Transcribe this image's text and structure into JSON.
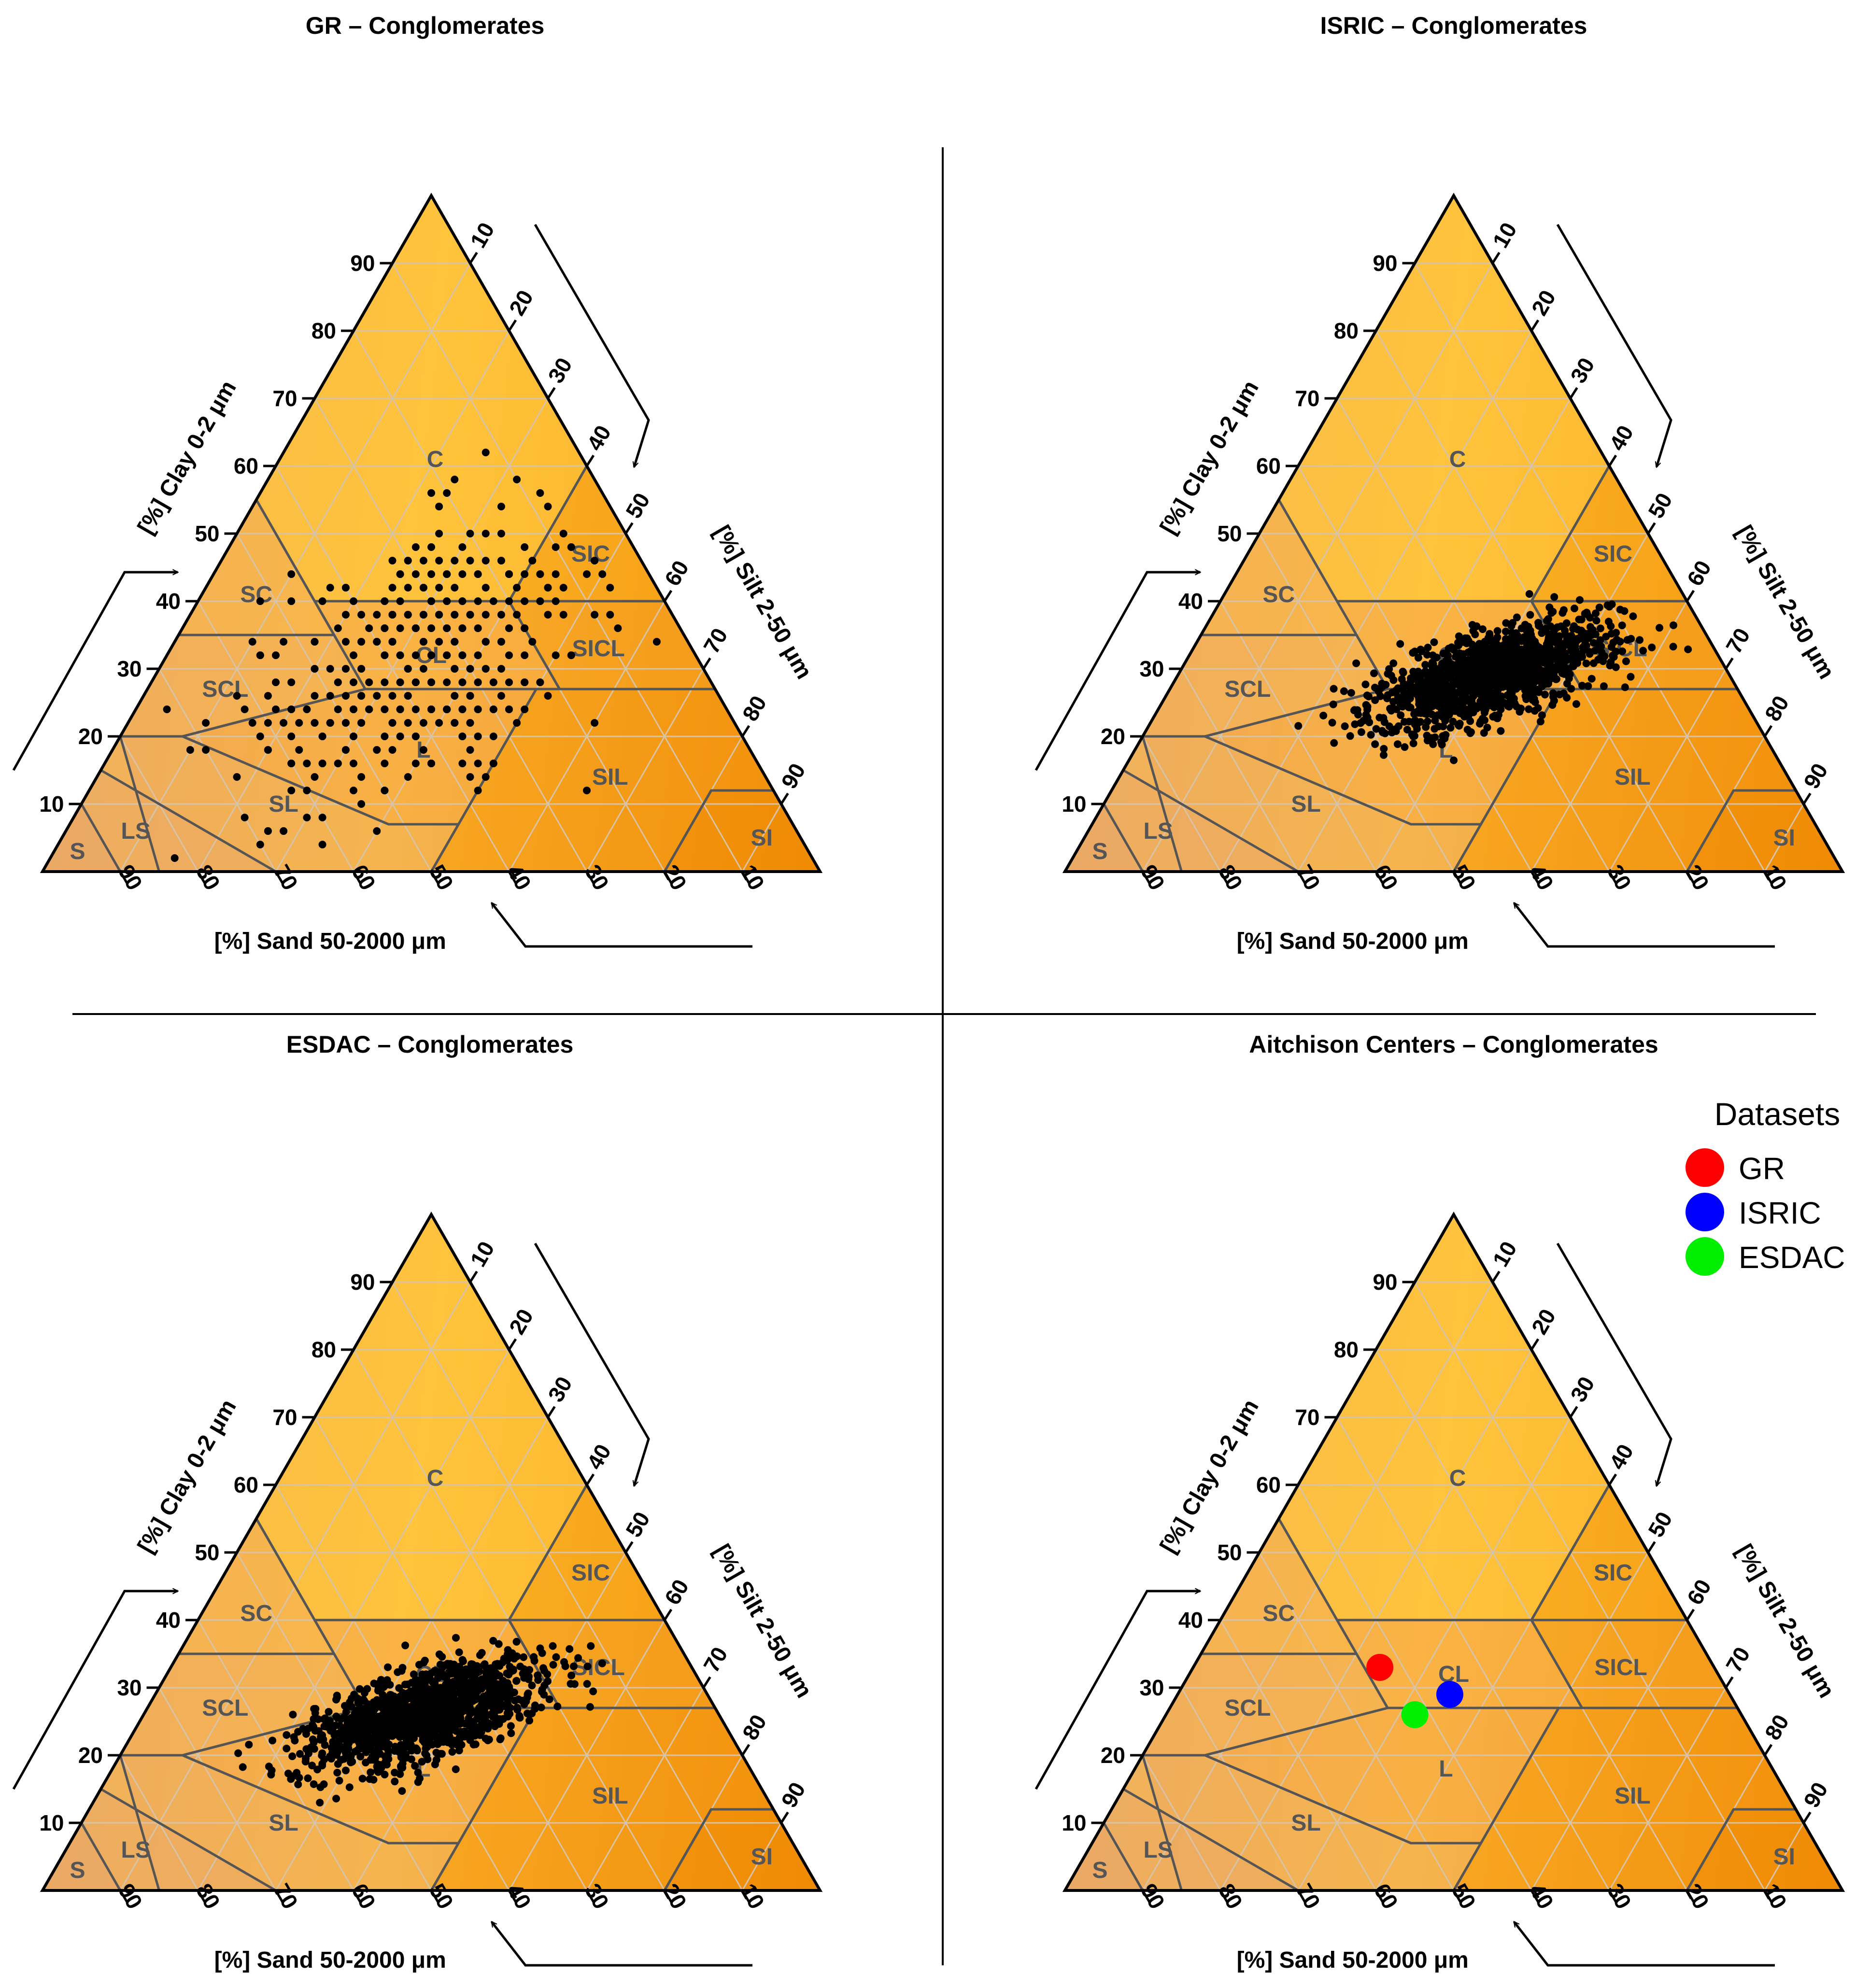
{
  "figure": {
    "colors": {
      "clay_light": "#FFC13A",
      "sand_light": "#EDAE62",
      "silt_dark": "#F08A00",
      "grid": "#D8C3A6",
      "boundary": "#555555",
      "point": "#000000",
      "divider": "#000000"
    }
  },
  "chart_data": [
    {
      "type": "ternary-scatter",
      "title": "GR – Conglomerates",
      "axes": {
        "clay": "[%] Clay 0-2 μm",
        "silt": "[%] Silt 2-50 μm",
        "sand": "[%] Sand 50-2000 μm"
      },
      "ticks": [
        "10",
        "20",
        "30",
        "40",
        "50",
        "60",
        "70",
        "80",
        "90"
      ],
      "classes": [
        "C",
        "SIC",
        "SC",
        "CL",
        "SICL",
        "SCL",
        "L",
        "SIL",
        "SL",
        "LS",
        "S",
        "SI"
      ],
      "points": {
        "seed": 11,
        "count": 420,
        "type": "grid",
        "center": {
          "clay": 31,
          "silt": 34
        },
        "spread": {
          "clay": 11,
          "silt": 10
        }
      }
    },
    {
      "type": "ternary-scatter",
      "title": "ISRIC – Conglomerates",
      "axes": {
        "clay": "[%] Clay 0-2 μm",
        "silt": "[%] Silt 2-50 μm",
        "sand": "[%] Sand 50-2000 μm"
      },
      "ticks": [
        "10",
        "20",
        "30",
        "40",
        "50",
        "60",
        "70",
        "80",
        "90"
      ],
      "classes": [
        "C",
        "SIC",
        "SC",
        "CL",
        "SICL",
        "SCL",
        "L",
        "SIL",
        "SL",
        "LS",
        "S",
        "SI"
      ],
      "points": {
        "seed": 23,
        "count": 1300,
        "type": "cloud",
        "center": {
          "clay": 29,
          "silt": 40
        },
        "spread": {
          "clay": 4,
          "silt": 6
        }
      }
    },
    {
      "type": "ternary-scatter",
      "title": "ESDAC – Conglomerates",
      "axes": {
        "clay": "[%] Clay 0-2 μm",
        "silt": "[%] Silt 2-50 μm",
        "sand": "[%] Sand 50-2000 μm"
      },
      "ticks": [
        "10",
        "20",
        "30",
        "40",
        "50",
        "60",
        "70",
        "80",
        "90"
      ],
      "classes": [
        "C",
        "SIC",
        "SC",
        "CL",
        "SICL",
        "SCL",
        "L",
        "SIL",
        "SL",
        "LS",
        "S",
        "SI"
      ],
      "points": {
        "seed": 37,
        "count": 1300,
        "type": "cloud",
        "center": {
          "clay": 26,
          "silt": 36
        },
        "spread": {
          "clay": 4,
          "silt": 6
        }
      }
    },
    {
      "type": "ternary-scatter",
      "title": "Aitchison Centers – Conglomerates",
      "axes": {
        "clay": "[%] Clay 0-2 μm",
        "silt": "[%] Silt 2-50 μm",
        "sand": "[%] Sand 50-2000 μm"
      },
      "ticks": [
        "10",
        "20",
        "30",
        "40",
        "50",
        "60",
        "70",
        "80",
        "90"
      ],
      "classes": [
        "C",
        "SIC",
        "SC",
        "CL",
        "SICL",
        "SCL",
        "L",
        "SIL",
        "SL",
        "LS",
        "S",
        "SI"
      ],
      "legend": {
        "title": "Datasets",
        "position": "top-right",
        "items": [
          {
            "name": "GR",
            "color": "#FF0000"
          },
          {
            "name": "ISRIC",
            "color": "#0000FF"
          },
          {
            "name": "ESDAC",
            "color": "#00EE00"
          }
        ]
      },
      "centers": [
        {
          "name": "GR",
          "clay": 33,
          "silt": 24,
          "sand": 43,
          "color": "#FF0000"
        },
        {
          "name": "ISRIC",
          "clay": 29,
          "silt": 35,
          "sand": 36,
          "color": "#0000FF"
        },
        {
          "name": "ESDAC",
          "clay": 26,
          "silt": 32,
          "sand": 42,
          "color": "#00EE00"
        }
      ]
    }
  ]
}
